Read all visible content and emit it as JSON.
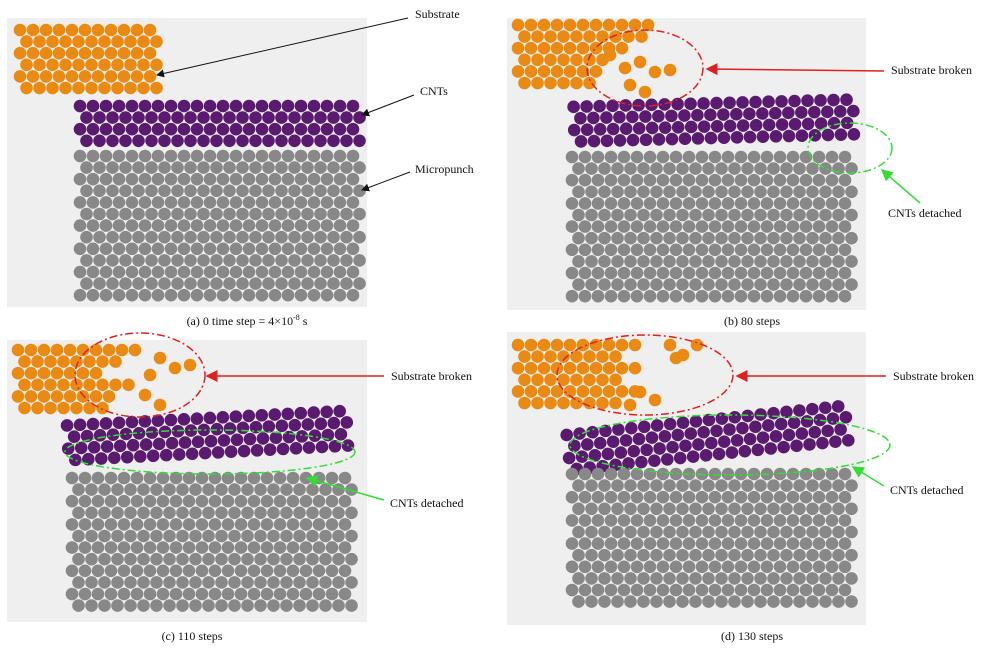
{
  "panels": [
    {
      "caption": "(a) 0 time step = 4×10",
      "caption_sup": "-8",
      "caption_end": "s",
      "labels": [
        "Substrate",
        "CNTs",
        "Micropunch"
      ]
    },
    {
      "caption": "(b) 80 steps",
      "labels": [
        "Substrate broken",
        "CNTs detached"
      ]
    },
    {
      "caption": "(c) 110 steps",
      "labels": [
        "Substrate broken",
        "CNTs detached"
      ]
    },
    {
      "caption": "(d) 130 steps",
      "labels": [
        "Substrate broken",
        "CNTs detached"
      ]
    }
  ]
}
